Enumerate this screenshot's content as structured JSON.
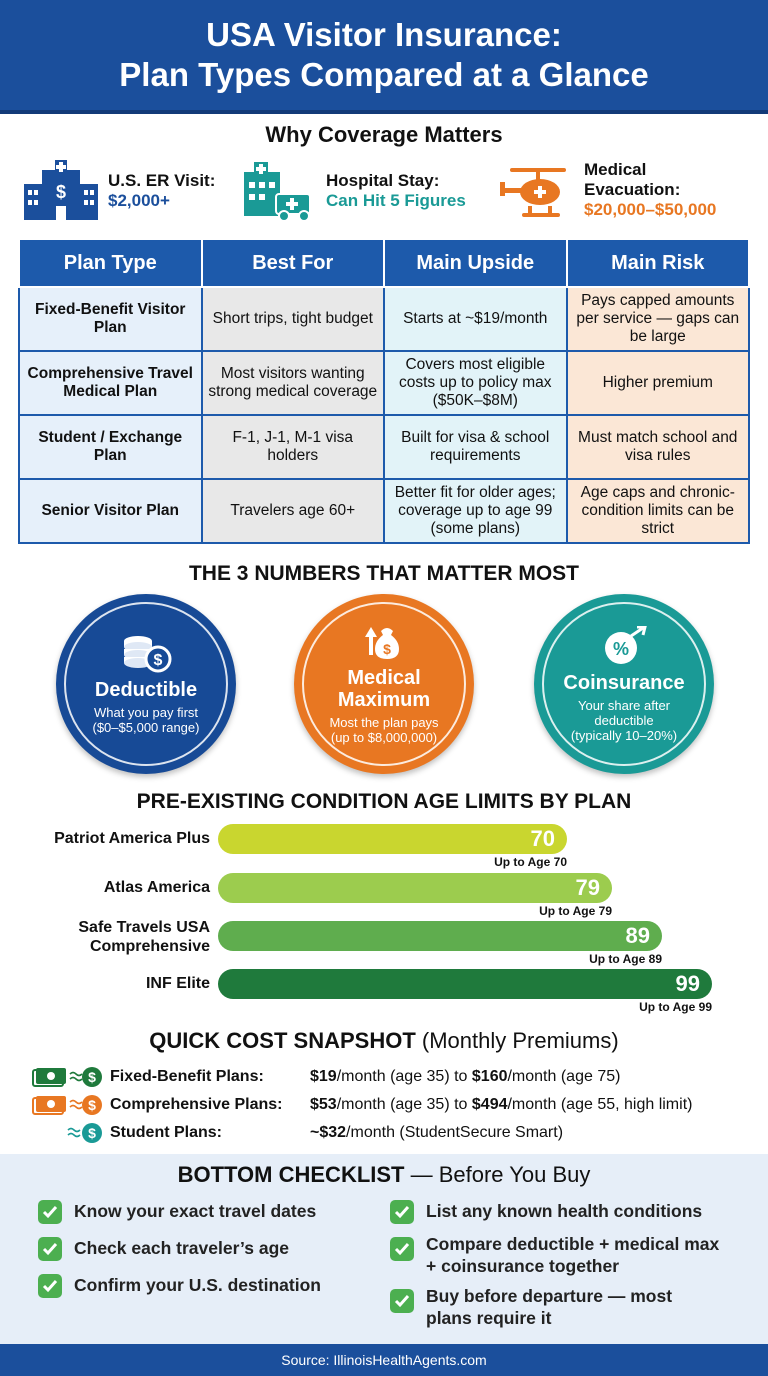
{
  "header": {
    "title_line1": "USA Visitor Insurance:",
    "title_line2": "Plan Types Compared at a Glance"
  },
  "why": {
    "title": "Why Coverage Matters",
    "stats": [
      {
        "label": "U.S. ER Visit:",
        "value": "$2,000+",
        "color": "#1b4f9c",
        "icon": "hospital-icon"
      },
      {
        "label": "Hospital Stay:",
        "value": "Can Hit 5 Figures",
        "color": "#1a9a96",
        "icon": "hospital-ambulance-icon"
      },
      {
        "label_line1": "Medical",
        "label_line2": "Evacuation:",
        "value": "$20,000–$50,000",
        "color": "#e87722",
        "icon": "helicopter-icon"
      }
    ]
  },
  "table": {
    "headers": [
      "Plan Type",
      "Best For",
      "Main Upside",
      "Main Risk"
    ],
    "rows": [
      [
        "Fixed-Benefit Visitor Plan",
        "Short trips, tight budget",
        "Starts at ~$19/month",
        "Pays capped amounts per service — gaps can be large"
      ],
      [
        "Comprehensive Travel Medical Plan",
        "Most visitors wanting strong medical coverage",
        "Covers most eligible costs up to policy max ($50K–$8M)",
        "Higher premium"
      ],
      [
        "Student / Exchange Plan",
        "F-1, J-1, M-1 visa holders",
        "Built for visa & school requirements",
        "Must match school and visa rules"
      ],
      [
        "Senior Visitor Plan",
        "Travelers age 60+",
        "Better fit for older ages; coverage up to age 99 (some plans)",
        "Age caps and chronic-condition limits can be strict"
      ]
    ]
  },
  "numbers": {
    "title": "THE 3 NUMBERS THAT MATTER MOST",
    "items": [
      {
        "title": "Deductible",
        "desc1": "What you pay first",
        "desc2": "($0–$5,000 range)",
        "color": "#174a96",
        "icon": "coins-icon"
      },
      {
        "title1": "Medical",
        "title2": "Maximum",
        "desc1": "Most the plan pays",
        "desc2": "(up to $8,000,000)",
        "color": "#e87722",
        "icon": "money-bag-icon"
      },
      {
        "title": "Coinsurance",
        "desc1": "Your share after",
        "desc2": "deductible",
        "desc3": "(typically 10–20%)",
        "color": "#1a9a96",
        "icon": "percent-icon"
      }
    ]
  },
  "age_limits": {
    "title": "PRE-EXISTING CONDITION AGE LIMITS BY PLAN",
    "plans": [
      {
        "name": "Patriot America Plus",
        "value": "70",
        "sub": "Up to Age 70",
        "age": 70,
        "color": "#c9d62f"
      },
      {
        "name": "Atlas America",
        "value": "79",
        "sub": "Up to Age 79",
        "age": 79,
        "color": "#9ccc4e"
      },
      {
        "name_line1": "Safe Travels USA",
        "name_line2": "Comprehensive",
        "value": "89",
        "sub": "Up to Age 89",
        "age": 89,
        "color": "#5fad4e"
      },
      {
        "name": "INF Elite",
        "value": "99",
        "sub": "Up to Age 99",
        "age": 99,
        "color": "#1f7a3c"
      }
    ]
  },
  "costs": {
    "title_bold": "QUICK COST SNAPSHOT",
    "title_rest": "(Monthly Premiums)",
    "rows": [
      {
        "label": "Fixed-Benefit Plans:",
        "p1": "$19",
        "t1": "/month (age 35) to ",
        "p2": "$160",
        "t2": "/month (age 75)",
        "icon": "cash-dollar-icon",
        "color": "#1f7a3c"
      },
      {
        "label": "Comprehensive Plans:",
        "p1": "$53",
        "t1": "/month (age 35) to ",
        "p2": "$494",
        "t2": "/month (age 55, high limit)",
        "icon": "cash-dollar-icon",
        "color": "#e87722"
      },
      {
        "label": "Student Plans:",
        "p1": "~$32",
        "t1": "/month (StudentSecure Smart)",
        "icon": "dollar-icon",
        "color": "#1a9a96"
      }
    ]
  },
  "checklist": {
    "title_bold": "BOTTOM CHECKLIST",
    "title_rest": " — Before You Buy",
    "left": [
      "Know your exact travel dates",
      "Check each traveler’s age",
      "Confirm your U.S. destination"
    ],
    "right": [
      {
        "l1": "List any known health conditions"
      },
      {
        "l1": "Compare deductible + medical max",
        "l2": "+ coinsurance together"
      },
      {
        "l1": "Buy before departure — most",
        "l2": "plans require it"
      }
    ]
  },
  "footer": "Source: IllinoisHealthAgents.com"
}
